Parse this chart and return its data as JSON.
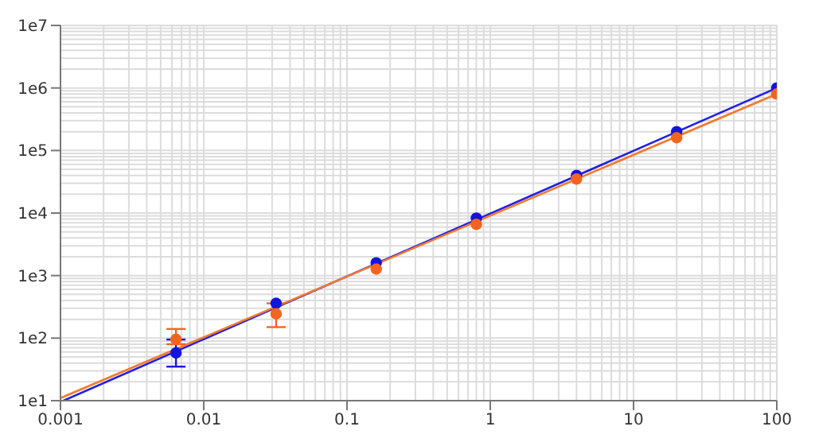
{
  "chart_data": {
    "type": "scatter",
    "log": "xy",
    "grid": true,
    "marker": "circle",
    "xlim": [
      0.001,
      100
    ],
    "xticks": [
      0.001,
      0.01,
      0.1,
      1,
      10,
      100
    ],
    "ylim": [
      10,
      10000000
    ],
    "yticks": [
      {
        "value": 10,
        "label": "1e1"
      },
      {
        "value": 100,
        "label": "1e2"
      },
      {
        "value": 1000,
        "label": "1e3"
      },
      {
        "value": 10000,
        "label": "1e4"
      },
      {
        "value": 100000,
        "label": "1e5"
      },
      {
        "value": 1000000,
        "label": "1e6"
      },
      {
        "value": 10000000,
        "label": "1e7"
      }
    ],
    "series": [
      {
        "type": "line",
        "marker": "none",
        "color": "#1f1fe6",
        "x": [
          0.00105,
          100
        ],
        "values": [
          10,
          1000000
        ]
      },
      {
        "type": "line",
        "marker": "none",
        "color": "#f27a2e",
        "x": [
          0.001,
          100
        ],
        "values": [
          11,
          800000
        ]
      },
      {
        "color": "#1414dc",
        "x": [
          0.0064,
          0.032,
          0.16,
          0.8,
          4,
          20,
          100
        ],
        "values": [
          58,
          360,
          1600,
          8300,
          40000,
          200000,
          1000000
        ],
        "errors": [
          [
            35,
            95
          ],
          null,
          null,
          null,
          null,
          null,
          null
        ]
      },
      {
        "color": "#f5641e",
        "x": [
          0.0064,
          0.032,
          0.16,
          0.8,
          4,
          20,
          100
        ],
        "values": [
          96,
          245,
          1270,
          6600,
          35000,
          160000,
          800000
        ],
        "errors": [
          [
            80,
            140
          ],
          [
            150,
            360
          ],
          null,
          null,
          null,
          null,
          null
        ]
      }
    ]
  }
}
